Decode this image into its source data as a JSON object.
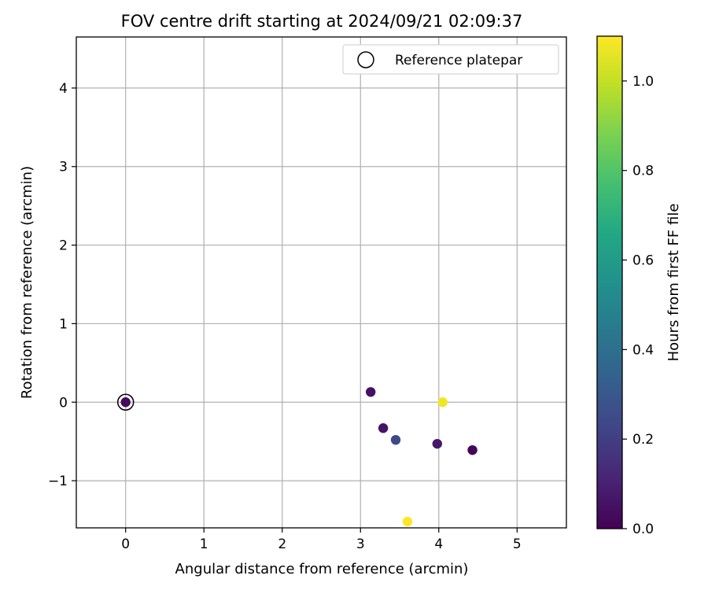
{
  "chart_data": {
    "type": "scatter",
    "title": "FOV centre drift starting at 2024/09/21 02:09:37",
    "xlabel": "Angular distance from reference (arcmin)",
    "ylabel": "Rotation from reference (arcmin)",
    "xlim": [
      -0.63,
      5.63
    ],
    "ylim": [
      -1.6,
      4.65
    ],
    "xticks": [
      0,
      1,
      2,
      3,
      4,
      5
    ],
    "yticks": [
      -1,
      0,
      1,
      2,
      3,
      4
    ],
    "grid": true,
    "legend": {
      "position": "top-right",
      "entries": [
        "Reference platepar"
      ]
    },
    "reference_point": {
      "x": 0,
      "y": 0
    },
    "points": [
      {
        "x": 0.0,
        "y": 0.0,
        "hours": 0.03
      },
      {
        "x": 3.13,
        "y": 0.13,
        "hours": 0.05
      },
      {
        "x": 3.29,
        "y": -0.33,
        "hours": 0.06
      },
      {
        "x": 3.45,
        "y": -0.48,
        "hours": 0.24
      },
      {
        "x": 3.98,
        "y": -0.53,
        "hours": 0.07
      },
      {
        "x": 4.43,
        "y": -0.61,
        "hours": 0.02
      },
      {
        "x": 4.05,
        "y": 0.0,
        "hours": 1.08
      },
      {
        "x": 3.6,
        "y": -1.52,
        "hours": 1.1
      }
    ],
    "colorbar": {
      "label": "Hours from first FF file",
      "colormap": "viridis",
      "range": [
        0.0,
        1.1
      ],
      "ticks": [
        0.0,
        0.2,
        0.4,
        0.6,
        0.8,
        1.0
      ]
    }
  }
}
